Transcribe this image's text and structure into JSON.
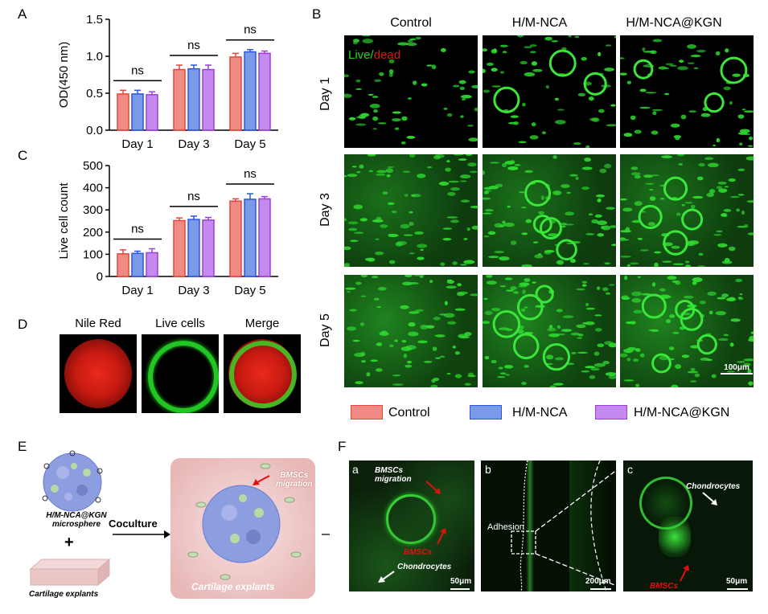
{
  "panel_labels": [
    "A",
    "B",
    "C",
    "D",
    "E",
    "F"
  ],
  "colors": {
    "control": "#e8453c",
    "control_fill": "#f08a84",
    "hm": "#2b55e0",
    "hm_fill": "#7a9ae8",
    "kgn": "#9b3ee0",
    "kgn_fill": "#c48af0",
    "green": "#22d322",
    "red": "#d81818"
  },
  "chart_data": [
    {
      "type": "bar",
      "panel": "A",
      "categories": [
        "Day 1",
        "Day 3",
        "Day 5"
      ],
      "series": [
        {
          "name": "Control",
          "values": [
            0.49,
            0.82,
            0.99
          ],
          "errors": [
            0.05,
            0.06,
            0.05
          ]
        },
        {
          "name": "H/M-NCA",
          "values": [
            0.49,
            0.83,
            1.06
          ],
          "errors": [
            0.05,
            0.05,
            0.03
          ]
        },
        {
          "name": "H/M-NCA@KGN",
          "values": [
            0.48,
            0.82,
            1.04
          ],
          "errors": [
            0.04,
            0.06,
            0.03
          ]
        }
      ],
      "ylabel": "OD(450 nm)",
      "ylim": [
        0,
        1.5
      ],
      "yticks": [
        "0.0",
        "0.5",
        "1.0",
        "1.5"
      ],
      "annotations": [
        "ns",
        "ns",
        "ns"
      ]
    },
    {
      "type": "bar",
      "panel": "C",
      "categories": [
        "Day 1",
        "Day 3",
        "Day 5"
      ],
      "series": [
        {
          "name": "Control",
          "values": [
            102,
            252,
            340
          ],
          "errors": [
            18,
            12,
            10
          ]
        },
        {
          "name": "H/M-NCA",
          "values": [
            104,
            257,
            348
          ],
          "errors": [
            10,
            15,
            25
          ]
        },
        {
          "name": "H/M-NCA@KGN",
          "values": [
            107,
            254,
            350
          ],
          "errors": [
            18,
            12,
            10
          ]
        }
      ],
      "ylabel": "Live cell count",
      "ylim": [
        0,
        500
      ],
      "yticks": [
        "0",
        "100",
        "200",
        "300",
        "400",
        "500"
      ],
      "annotations": [
        "ns",
        "ns",
        "ns"
      ]
    }
  ],
  "panelB": {
    "columns": [
      "Control",
      "H/M-NCA",
      "H/M-NCA@KGN"
    ],
    "rows": [
      "Day 1",
      "Day 3",
      "Day 5"
    ],
    "live_label": "Live/",
    "dead_label": "dead",
    "scale_bar": "100μm"
  },
  "legend": [
    "Control",
    "H/M-NCA",
    "H/M-NCA@KGN"
  ],
  "panelD": {
    "titles": [
      "Nile Red",
      "Live cells",
      "Merge"
    ]
  },
  "panelE": {
    "microsphere_label_1": "H/M-NCA@KGN",
    "microsphere_label_2": "microsphere",
    "plus": "+",
    "cartilage_label": "Cartilage explants",
    "coculture": "Coculture",
    "bmscs_migration_1": "BMSCs",
    "bmscs_migration_2": "migration",
    "explant_label": "Cartilage explants"
  },
  "panelF": {
    "a": {
      "label": "a",
      "migration_1": "BMSCs",
      "migration_2": "migration",
      "bmscs": "BMSCs",
      "chondro": "Chondrocytes",
      "scale": "50μm"
    },
    "b": {
      "label": "b",
      "adhesion": "Adhesion",
      "scale": "200μm"
    },
    "c": {
      "label": "c",
      "chondro": "Chondrocytes",
      "bmscs": "BMSCs",
      "scale": "50μm"
    }
  }
}
